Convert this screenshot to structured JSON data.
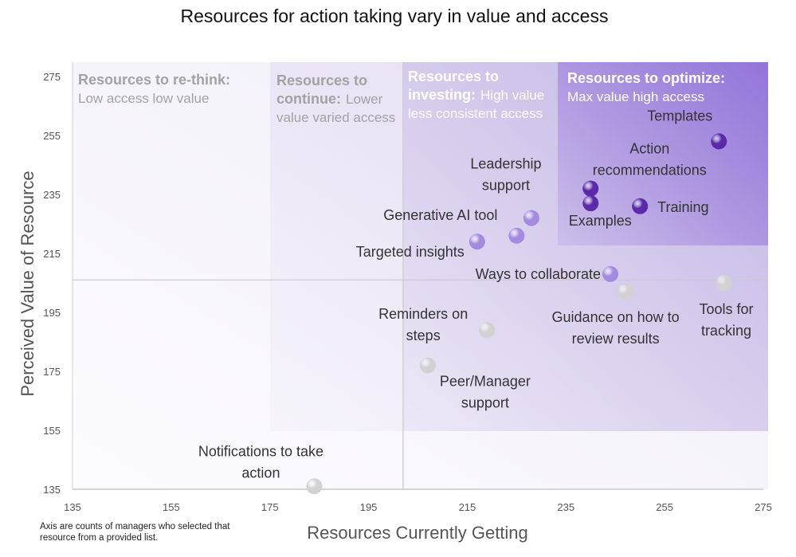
{
  "chart_data": {
    "type": "scatter",
    "title": "Resources for action taking vary in value and access",
    "xlabel": "Resources Currently Getting",
    "ylabel": "Perceived Value of Resource",
    "xlim": [
      135,
      275
    ],
    "ylim": [
      135,
      275
    ],
    "xticks": [
      135,
      155,
      175,
      195,
      215,
      235,
      255,
      275
    ],
    "yticks": [
      135,
      155,
      175,
      195,
      215,
      235,
      255,
      275
    ],
    "divider": {
      "x": 202,
      "y": 206
    },
    "quadrants": [
      {
        "id": "rethink",
        "heading": "Resources to re-think:",
        "description_lines": [
          "Low access low value"
        ],
        "x_range": [
          135,
          275
        ],
        "y_range": [
          135,
          275
        ],
        "fill": "#7a5cc4",
        "opacity": 0.06,
        "text_color": "#a3a3a3"
      },
      {
        "id": "continue",
        "heading_lines": [
          "Resources to",
          "continue:"
        ],
        "description_lines": [
          "Lower",
          "value varied access"
        ],
        "x_range": [
          175,
          275
        ],
        "y_range": [
          155,
          275
        ],
        "fill": "#7a5cc4",
        "opacity": 0.08,
        "text_color": "#a3a3a3"
      },
      {
        "id": "investing",
        "heading_lines": [
          "Resources to",
          "investing:"
        ],
        "description_lines": [
          "High value",
          "less consistent access"
        ],
        "x_range": [
          202,
          275
        ],
        "y_range": [
          155,
          275
        ],
        "fill": "#7a5cc4",
        "opacity": 0.16,
        "text_color": "#ffffff"
      },
      {
        "id": "optimize",
        "heading": "Resources to optimize:",
        "description_lines": [
          "Max value high access"
        ],
        "x_range": [
          234,
          275
        ],
        "y_range": [
          206,
          275
        ],
        "fill": "#6b3fd0",
        "opacity": 0.3,
        "text_color": "#ffffff"
      }
    ],
    "points": [
      {
        "label_lines": [
          "Templates"
        ],
        "x": 266,
        "y": 253,
        "color": "#5b2aa8"
      },
      {
        "label_lines": [
          "Action",
          "recommendations"
        ],
        "x": 240,
        "y": 237,
        "color": "#5b2aa8"
      },
      {
        "label_lines": [
          "Examples"
        ],
        "x": 240,
        "y": 232,
        "color": "#5b2aa8"
      },
      {
        "label_lines": [
          "Training"
        ],
        "x": 250,
        "y": 231,
        "color": "#5b2aa8"
      },
      {
        "label_lines": [
          "Leadership",
          "support"
        ],
        "x": 228,
        "y": 227,
        "color": "#a58be0"
      },
      {
        "label_lines": [
          "Generative AI tool"
        ],
        "x": 225,
        "y": 221,
        "color": "#a58be0"
      },
      {
        "label_lines": [
          "Targeted insights"
        ],
        "x": 217,
        "y": 219,
        "color": "#a58be0"
      },
      {
        "label_lines": [
          "Ways to collaborate"
        ],
        "x": 244,
        "y": 208,
        "color": "#a58be0"
      },
      {
        "label_lines": [
          "Guidance on how to",
          "review results"
        ],
        "x": 247,
        "y": 202,
        "color": "#d2d2d2"
      },
      {
        "label_lines": [
          "Tools for",
          "tracking"
        ],
        "x": 267,
        "y": 205,
        "color": "#d2d2d2"
      },
      {
        "label_lines": [
          "Reminders on",
          "steps"
        ],
        "x": 219,
        "y": 189,
        "color": "#d2d2d2"
      },
      {
        "label_lines": [
          "Peer/Manager",
          "support"
        ],
        "x": 207,
        "y": 177,
        "color": "#d2d2d2"
      },
      {
        "label_lines": [
          "Notifications to take",
          "action"
        ],
        "x": 184,
        "y": 136,
        "color": "#d2d2d2"
      }
    ]
  },
  "footnote": "Axis are counts of managers who selected that resource from a provided list."
}
